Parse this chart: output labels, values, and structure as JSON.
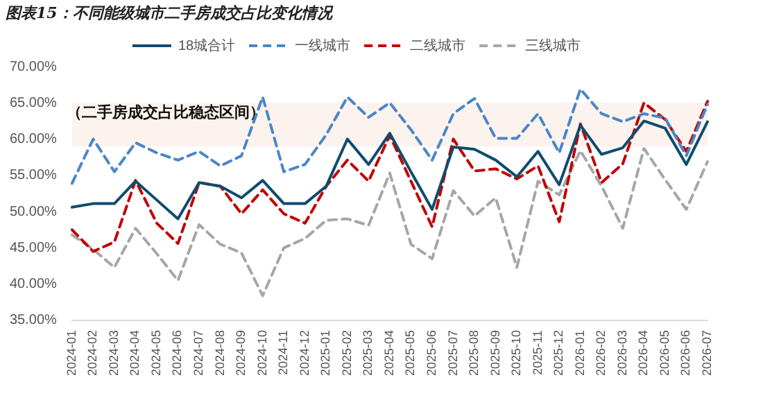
{
  "chart_data": {
    "type": "line",
    "title": "图表15：不同能级城市二手房成交占比变化情况",
    "categories": [
      "2024-01",
      "2024-02",
      "2024-03",
      "2024-04",
      "2024-05",
      "2024-06",
      "2024-07",
      "2024-08",
      "2024-09",
      "2024-10",
      "2024-11",
      "2024-12",
      "2025-01",
      "2025-02",
      "2025-03",
      "2025-04",
      "2025-05",
      "2025-06",
      "2025-07",
      "2025-08",
      "2025-09",
      "2025-10",
      "2025-11",
      "2025-12",
      "2026-01",
      "2026-02",
      "2026-03",
      "2026-04",
      "2026-05",
      "2026-06",
      "2026-07"
    ],
    "series": [
      {
        "name": "18城合计",
        "color": "#0f4c6e",
        "line_style": "solid",
        "values": [
          50.6,
          51.1,
          51.1,
          54.2,
          51.6,
          49.0,
          54.0,
          53.5,
          51.9,
          54.3,
          51.1,
          51.1,
          53.5,
          60.0,
          56.5,
          60.8,
          55.5,
          50.3,
          58.9,
          58.6,
          57.1,
          54.8,
          58.3,
          53.7,
          61.9,
          57.9,
          58.8,
          62.5,
          61.5,
          56.5,
          62.4
        ]
      },
      {
        "name": "一线城市",
        "color": "#4a86c8",
        "line_style": "dashed",
        "values": [
          53.9,
          60.0,
          55.5,
          59.5,
          58.1,
          57.1,
          58.3,
          56.3,
          57.7,
          65.8,
          55.5,
          56.5,
          60.6,
          65.8,
          63.0,
          65.0,
          61.3,
          57.1,
          63.5,
          65.6,
          60.1,
          60.1,
          63.5,
          58.1,
          66.9,
          63.5,
          62.4,
          63.5,
          62.9,
          57.7,
          64.8
        ]
      },
      {
        "name": "二线城市",
        "color": "#c00000",
        "line_style": "dashed",
        "values": [
          47.5,
          44.5,
          45.8,
          54.3,
          48.4,
          45.6,
          54.0,
          53.5,
          49.7,
          53.0,
          49.7,
          48.4,
          53.5,
          57.1,
          54.2,
          60.5,
          54.2,
          47.9,
          60.0,
          55.6,
          55.9,
          54.5,
          56.3,
          48.6,
          62.1,
          54.0,
          56.6,
          65.0,
          62.7,
          58.3,
          65.2
        ]
      },
      {
        "name": "三线城市",
        "color": "#a6a6a6",
        "line_style": "dashed",
        "values": [
          46.8,
          44.8,
          42.3,
          47.7,
          44.2,
          40.5,
          48.2,
          45.5,
          44.3,
          38.4,
          45.0,
          46.3,
          48.8,
          49.0,
          48.1,
          55.3,
          45.5,
          43.5,
          52.9,
          49.4,
          51.9,
          42.3,
          54.2,
          52.3,
          58.4,
          53.5,
          47.7,
          58.7,
          54.4,
          50.3,
          56.9
        ]
      }
    ],
    "ylim": [
      35,
      70
    ],
    "yticks": [
      {
        "value": 35,
        "label": "35.00%"
      },
      {
        "value": 40,
        "label": "40.00%"
      },
      {
        "value": 45,
        "label": "45.00%"
      },
      {
        "value": 50,
        "label": "50.00%"
      },
      {
        "value": 55,
        "label": "55.00%"
      },
      {
        "value": 60,
        "label": "60.00%"
      },
      {
        "value": 65,
        "label": "65.00%"
      },
      {
        "value": 70,
        "label": "70.00%"
      }
    ],
    "bands": [
      {
        "axis": "y",
        "from": 59,
        "to": 65,
        "label": "（二手房成交占比稳态区间）",
        "color": "#fcf3ee"
      }
    ],
    "grid": false,
    "legend": "top",
    "marker": "none"
  }
}
